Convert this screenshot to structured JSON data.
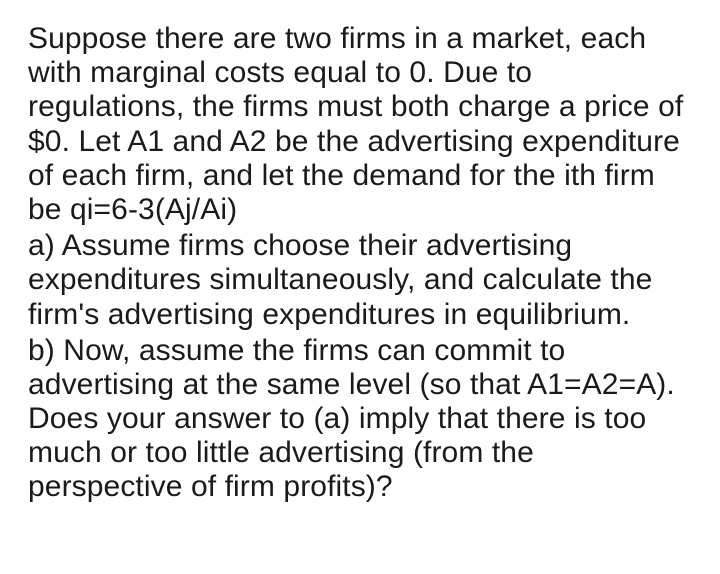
{
  "font": {
    "family": "Segoe UI, Helvetica Neue, Arial, sans-serif",
    "size_pt": 22,
    "color": "#1a1a1a",
    "line_height": 1.14,
    "weight": 400
  },
  "background_color": "#ffffff",
  "paragraphs": {
    "intro": "Suppose there are two firms in a market, each with marginal costs equal to 0. Due to regulations, the firms must both charge a price of $0. Let A1 and A2 be the advertising expenditure of each firm, and let the demand for the ith firm be qi=6-3(Aj/Ai)",
    "part_a": "a) Assume firms choose their advertising expenditures simultaneously, and calculate the firm's advertising expenditures in equilibrium.",
    "part_b": "b) Now, assume the firms can commit to advertising at the same level (so that A1=A2=A). Does your answer to (a) imply that there is too much or too little advertising (from the perspective of firm profits)?"
  }
}
